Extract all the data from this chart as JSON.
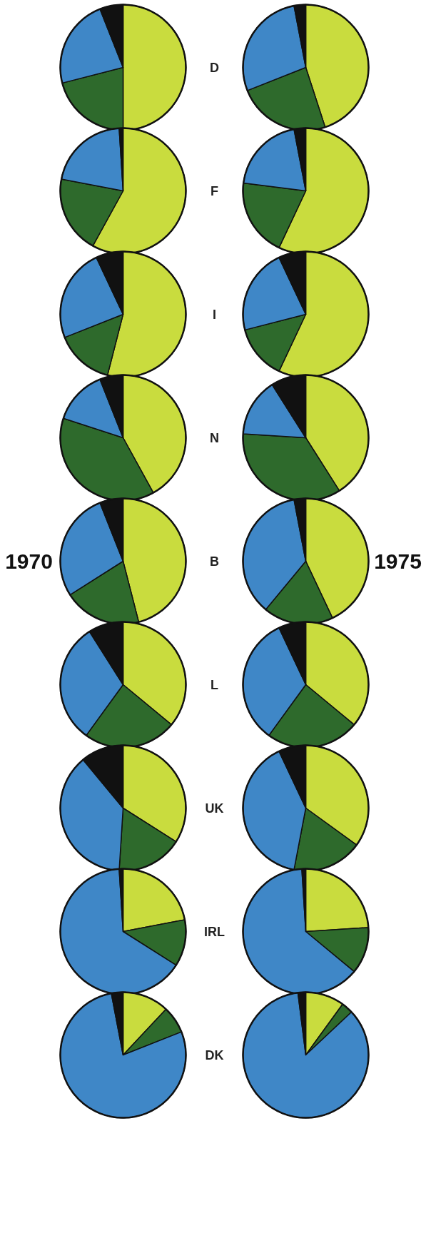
{
  "chart_data": [
    {
      "type": "pie",
      "categories": [
        null,
        null,
        null,
        null
      ],
      "values": [
        50,
        21,
        23,
        6
      ],
      "colors": [
        "#c9dc3e",
        "#2e6a2c",
        "#3f87c7",
        "#111111"
      ],
      "annotations": [
        "D"
      ]
    },
    {
      "type": "pie",
      "categories": [
        null,
        null,
        null,
        null
      ],
      "values": [
        45,
        24,
        28,
        3
      ],
      "colors": [
        "#c9dc3e",
        "#2e6a2c",
        "#3f87c7",
        "#111111"
      ]
    },
    {
      "type": "pie",
      "categories": [
        null,
        null,
        null,
        null
      ],
      "values": [
        58,
        20,
        21,
        1
      ],
      "colors": [
        "#c9dc3e",
        "#2e6a2c",
        "#3f87c7",
        "#111111"
      ],
      "annotations": [
        "F"
      ]
    },
    {
      "type": "pie",
      "categories": [
        null,
        null,
        null,
        null
      ],
      "values": [
        57,
        20,
        20,
        3
      ],
      "colors": [
        "#c9dc3e",
        "#2e6a2c",
        "#3f87c7",
        "#111111"
      ]
    },
    {
      "type": "pie",
      "categories": [
        null,
        null,
        null,
        null
      ],
      "values": [
        54,
        15,
        24,
        7
      ],
      "colors": [
        "#c9dc3e",
        "#2e6a2c",
        "#3f87c7",
        "#111111"
      ],
      "annotations": [
        "I"
      ]
    },
    {
      "type": "pie",
      "categories": [
        null,
        null,
        null,
        null
      ],
      "values": [
        57,
        14,
        22,
        7
      ],
      "colors": [
        "#c9dc3e",
        "#2e6a2c",
        "#3f87c7",
        "#111111"
      ]
    },
    {
      "type": "pie",
      "categories": [
        null,
        null,
        null,
        null
      ],
      "values": [
        42,
        38,
        14,
        6
      ],
      "colors": [
        "#c9dc3e",
        "#2e6a2c",
        "#3f87c7",
        "#111111"
      ],
      "annotations": [
        "N"
      ]
    },
    {
      "type": "pie",
      "categories": [
        null,
        null,
        null,
        null
      ],
      "values": [
        41,
        35,
        15,
        9
      ],
      "colors": [
        "#c9dc3e",
        "#2e6a2c",
        "#3f87c7",
        "#111111"
      ]
    },
    {
      "type": "pie",
      "categories": [
        null,
        null,
        null,
        null
      ],
      "values": [
        46,
        20,
        28,
        6
      ],
      "colors": [
        "#c9dc3e",
        "#2e6a2c",
        "#3f87c7",
        "#111111"
      ],
      "annotations": [
        "B"
      ]
    },
    {
      "type": "pie",
      "categories": [
        null,
        null,
        null,
        null
      ],
      "values": [
        43,
        18,
        36,
        3
      ],
      "colors": [
        "#c9dc3e",
        "#2e6a2c",
        "#3f87c7",
        "#111111"
      ]
    },
    {
      "type": "pie",
      "categories": [
        null,
        null,
        null,
        null
      ],
      "values": [
        36,
        24,
        31,
        9
      ],
      "colors": [
        "#c9dc3e",
        "#2e6a2c",
        "#3f87c7",
        "#111111"
      ],
      "annotations": [
        "L"
      ]
    },
    {
      "type": "pie",
      "categories": [
        null,
        null,
        null,
        null
      ],
      "values": [
        36,
        24,
        33,
        7
      ],
      "colors": [
        "#c9dc3e",
        "#2e6a2c",
        "#3f87c7",
        "#111111"
      ]
    },
    {
      "type": "pie",
      "categories": [
        null,
        null,
        null,
        null
      ],
      "values": [
        34,
        17,
        38,
        11
      ],
      "colors": [
        "#c9dc3e",
        "#2e6a2c",
        "#3f87c7",
        "#111111"
      ],
      "annotations": [
        "UK"
      ]
    },
    {
      "type": "pie",
      "categories": [
        null,
        null,
        null,
        null
      ],
      "values": [
        35,
        18,
        40,
        7
      ],
      "colors": [
        "#c9dc3e",
        "#2e6a2c",
        "#3f87c7",
        "#111111"
      ]
    },
    {
      "type": "pie",
      "categories": [
        null,
        null,
        null,
        null
      ],
      "values": [
        22,
        12,
        65,
        1
      ],
      "colors": [
        "#c9dc3e",
        "#2e6a2c",
        "#3f87c7",
        "#111111"
      ],
      "annotations": [
        "IRL"
      ]
    },
    {
      "type": "pie",
      "categories": [
        null,
        null,
        null,
        null
      ],
      "values": [
        24,
        12,
        63,
        1
      ],
      "colors": [
        "#c9dc3e",
        "#2e6a2c",
        "#3f87c7",
        "#111111"
      ]
    },
    {
      "type": "pie",
      "categories": [
        null,
        null,
        null,
        null
      ],
      "values": [
        12,
        7,
        78,
        3
      ],
      "colors": [
        "#c9dc3e",
        "#2e6a2c",
        "#3f87c7",
        "#111111"
      ],
      "annotations": [
        "DK"
      ]
    },
    {
      "type": "pie",
      "categories": [
        null,
        null,
        null,
        null
      ],
      "values": [
        10,
        3,
        85,
        2
      ],
      "colors": [
        "#c9dc3e",
        "#2e6a2c",
        "#3f87c7",
        "#111111"
      ]
    },
    {
      "type": "other",
      "annotations": [
        "1970",
        "1975"
      ]
    }
  ]
}
